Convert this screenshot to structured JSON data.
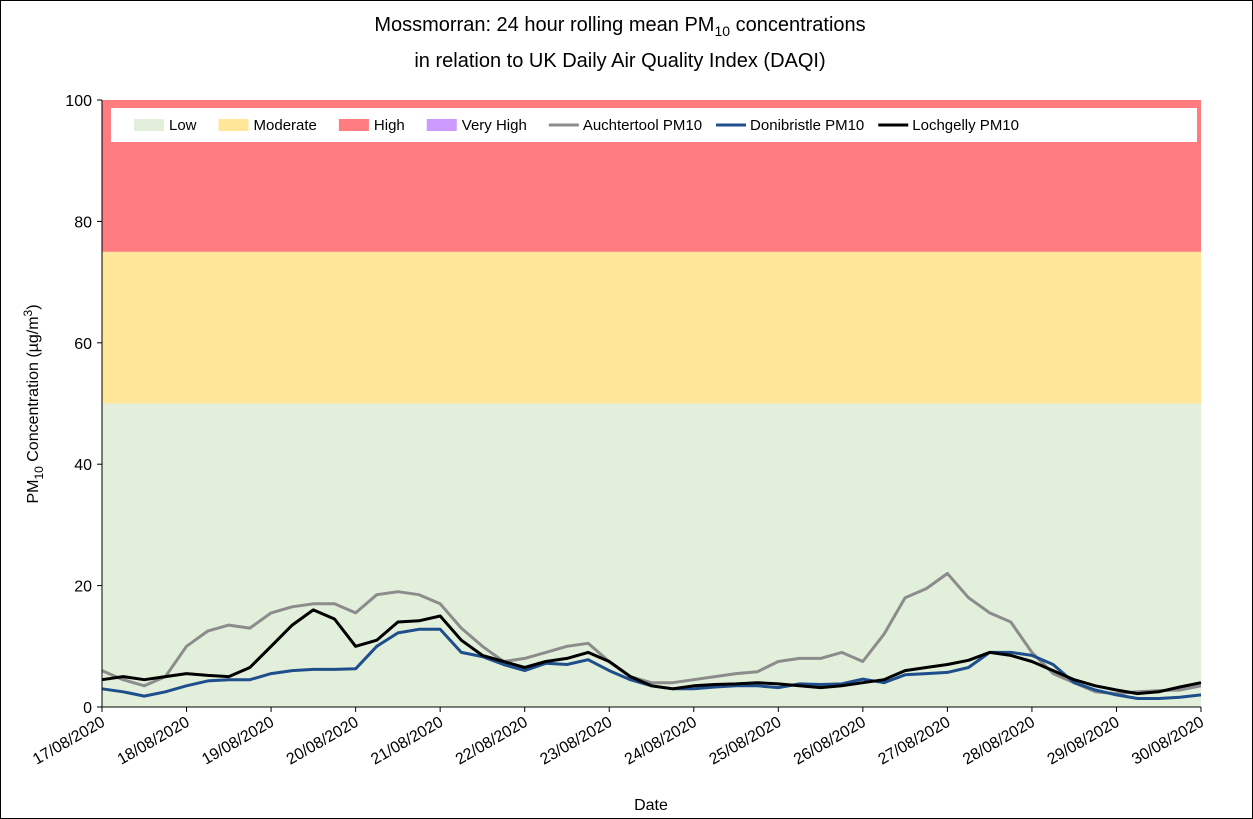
{
  "chart_data": {
    "type": "line",
    "title": {
      "before": "Mossmorran: 24 hour rolling mean PM",
      "sub": "10",
      "after": " concentrations"
    },
    "subtitle": "in relation to UK Daily Air Quality Index (DAQI)",
    "x_label": "Date",
    "y_label": {
      "before": "PM",
      "sub": "10",
      "middle": " Concentration (µg/m",
      "sup": "3",
      "after": ")"
    },
    "ylim": [
      0,
      100
    ],
    "yticks": [
      0,
      20,
      40,
      60,
      80,
      100
    ],
    "xlim": [
      0,
      13
    ],
    "xticks": [
      {
        "value": 0,
        "label": "17/08/2020"
      },
      {
        "value": 1,
        "label": "18/08/2020"
      },
      {
        "value": 2,
        "label": "19/08/2020"
      },
      {
        "value": 3,
        "label": "20/08/2020"
      },
      {
        "value": 4,
        "label": "21/08/2020"
      },
      {
        "value": 5,
        "label": "22/08/2020"
      },
      {
        "value": 6,
        "label": "23/08/2020"
      },
      {
        "value": 7,
        "label": "24/08/2020"
      },
      {
        "value": 8,
        "label": "25/08/2020"
      },
      {
        "value": 9,
        "label": "26/08/2020"
      },
      {
        "value": 10,
        "label": "27/08/2020"
      },
      {
        "value": 11,
        "label": "28/08/2020"
      },
      {
        "value": 12,
        "label": "29/08/2020"
      },
      {
        "value": 13,
        "label": "30/08/2020"
      }
    ],
    "bands": [
      {
        "name": "Low",
        "color": "#e2efda",
        "from": 0,
        "to": 50
      },
      {
        "name": "Moderate",
        "color": "#ffe699",
        "from": 50,
        "to": 75
      },
      {
        "name": "High",
        "color": "#ff7c80",
        "from": 75,
        "to": 100
      },
      {
        "name": "Very High",
        "color": "#cc99ff"
      }
    ],
    "x": [
      0,
      0.25,
      0.5,
      0.75,
      1,
      1.25,
      1.5,
      1.75,
      2,
      2.25,
      2.5,
      2.75,
      3,
      3.25,
      3.5,
      3.75,
      4,
      4.25,
      4.5,
      4.75,
      5,
      5.25,
      5.5,
      5.75,
      6,
      6.25,
      6.5,
      6.75,
      7,
      7.25,
      7.5,
      7.75,
      8,
      8.25,
      8.5,
      8.75,
      9,
      9.25,
      9.5,
      9.75,
      10,
      10.25,
      10.5,
      10.75,
      11,
      11.25,
      11.5,
      11.75,
      12,
      12.25,
      12.5,
      12.75,
      13
    ],
    "series": [
      {
        "name": "Auchtertool PM10",
        "color": "#8c8c8c",
        "width": 3,
        "values": [
          6,
          4.5,
          3.5,
          5,
          10,
          12.5,
          13.5,
          13,
          15.5,
          16.5,
          17,
          17,
          15.5,
          18.5,
          19,
          18.5,
          17,
          13,
          10,
          7.5,
          8,
          9,
          10,
          10.5,
          7.5,
          5,
          4,
          4,
          4.5,
          5,
          5.5,
          5.8,
          7.5,
          8,
          8,
          9,
          7.5,
          12,
          18,
          19.5,
          22,
          18,
          15.5,
          14,
          9,
          5.5,
          4,
          2.5,
          2.2,
          2.5,
          2.7,
          2.8,
          3.5
        ]
      },
      {
        "name": "Donibristle PM10",
        "color": "#1f4e8c",
        "width": 3,
        "values": [
          3,
          2.5,
          1.8,
          2.5,
          3.5,
          4.3,
          4.5,
          4.5,
          5.5,
          6,
          6.2,
          6.2,
          6.3,
          10,
          12.2,
          12.8,
          12.8,
          9,
          8.3,
          7,
          6,
          7.2,
          7,
          7.8,
          6,
          4.5,
          3.5,
          3,
          3,
          3.3,
          3.5,
          3.5,
          3.2,
          3.8,
          3.7,
          3.8,
          4.6,
          4,
          5.3,
          5.5,
          5.7,
          6.5,
          9,
          9,
          8.5,
          7,
          4,
          2.8,
          2,
          1.4,
          1.4,
          1.6,
          2
        ]
      },
      {
        "name": "Lochgelly PM10",
        "color": "#000000",
        "width": 3,
        "values": [
          4.5,
          5,
          4.5,
          5,
          5.5,
          5.2,
          5,
          6.5,
          10,
          13.5,
          16,
          14.5,
          10,
          11,
          14,
          14.2,
          15,
          11,
          8.5,
          7.5,
          6.5,
          7.5,
          8,
          9,
          7.5,
          5,
          3.5,
          3,
          3.5,
          3.7,
          3.8,
          4,
          3.8,
          3.5,
          3.2,
          3.5,
          4,
          4.5,
          6,
          6.5,
          7,
          7.7,
          9,
          8.5,
          7.5,
          6,
          4.5,
          3.5,
          2.8,
          2.2,
          2.5,
          3.3,
          4
        ]
      }
    ]
  }
}
